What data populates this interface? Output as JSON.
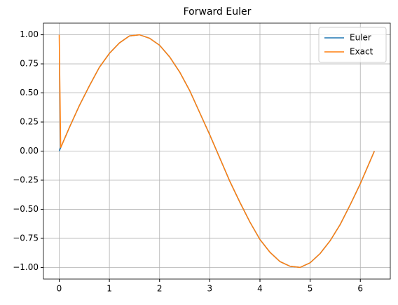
{
  "chart_data": {
    "type": "line",
    "title": "Forward Euler",
    "x": [
      0,
      0.03,
      0.2,
      0.4,
      0.6,
      0.8,
      1.0,
      1.2,
      1.4,
      1.6,
      1.8,
      2.0,
      2.2,
      2.4,
      2.6,
      2.8,
      3.0,
      3.2,
      3.4,
      3.6,
      3.8,
      4.0,
      4.2,
      4.4,
      4.6,
      4.8,
      5.0,
      5.2,
      5.4,
      5.6,
      5.8,
      6.0,
      6.2,
      6.28
    ],
    "series": [
      {
        "name": "Euler",
        "color": "#1f77b4",
        "values": [
          0,
          0.03,
          0.2,
          0.39,
          0.56,
          0.72,
          0.84,
          0.93,
          0.99,
          1.0,
          0.97,
          0.91,
          0.81,
          0.68,
          0.52,
          0.33,
          0.14,
          -0.06,
          -0.26,
          -0.44,
          -0.61,
          -0.76,
          -0.87,
          -0.95,
          -0.99,
          -1.0,
          -0.96,
          -0.88,
          -0.77,
          -0.63,
          -0.46,
          -0.28,
          -0.08,
          0.0
        ]
      },
      {
        "name": "Exact",
        "color": "#ff7f0e",
        "values": [
          1.0,
          0.03,
          0.2,
          0.39,
          0.56,
          0.72,
          0.84,
          0.93,
          0.99,
          1.0,
          0.97,
          0.91,
          0.81,
          0.68,
          0.52,
          0.33,
          0.14,
          -0.06,
          -0.26,
          -0.44,
          -0.61,
          -0.76,
          -0.87,
          -0.95,
          -0.99,
          -1.0,
          -0.96,
          -0.88,
          -0.77,
          -0.63,
          -0.46,
          -0.28,
          -0.08,
          0.0
        ]
      }
    ],
    "xlim": [
      -0.314,
      6.597
    ],
    "ylim": [
      -1.1,
      1.1
    ],
    "xticks": [
      0,
      1,
      2,
      3,
      4,
      5,
      6
    ],
    "yticks": [
      {
        "value": -1,
        "label": "−1.00"
      },
      {
        "value": -0.75,
        "label": "−0.75"
      },
      {
        "value": -0.5,
        "label": "−0.50"
      },
      {
        "value": -0.25,
        "label": "−0.25"
      },
      {
        "value": 0,
        "label": "0.00"
      },
      {
        "value": 0.25,
        "label": "0.25"
      },
      {
        "value": 0.5,
        "label": "0.50"
      },
      {
        "value": 0.75,
        "label": "0.75"
      },
      {
        "value": 1,
        "label": "1.00"
      }
    ],
    "grid": true,
    "legend": "upper-right"
  }
}
